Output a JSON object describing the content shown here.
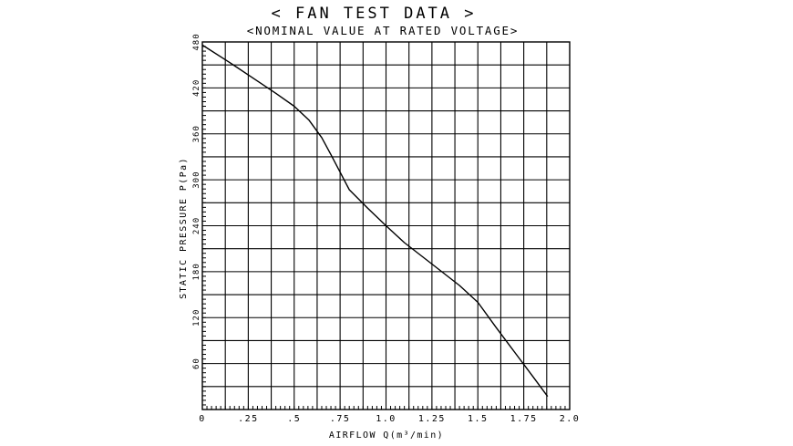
{
  "chart_data": {
    "type": "line",
    "title": "< FAN TEST DATA >",
    "subtitle": "<NOMINAL VALUE AT RATED VOLTAGE>",
    "xlabel": "AIRFLOW Q(m³/min)",
    "ylabel": "STATIC PRESSURE P(Pa)",
    "xlim": [
      0,
      2.0
    ],
    "ylim": [
      0,
      480
    ],
    "x_ticks": [
      {
        "value": 0,
        "label": "0"
      },
      {
        "value": 0.25,
        "label": ".25"
      },
      {
        "value": 0.5,
        "label": ".5"
      },
      {
        "value": 0.75,
        "label": ".75"
      },
      {
        "value": 1.0,
        "label": "1.0"
      },
      {
        "value": 1.25,
        "label": "1.25"
      },
      {
        "value": 1.5,
        "label": "1.5"
      },
      {
        "value": 1.75,
        "label": "1.75"
      },
      {
        "value": 2.0,
        "label": "2.0"
      }
    ],
    "y_ticks": [
      {
        "value": 60,
        "label": "60"
      },
      {
        "value": 120,
        "label": "120"
      },
      {
        "value": 180,
        "label": "180"
      },
      {
        "value": 240,
        "label": "240"
      },
      {
        "value": 300,
        "label": "300"
      },
      {
        "value": 360,
        "label": "360"
      },
      {
        "value": 420,
        "label": "420"
      },
      {
        "value": 480,
        "label": "480"
      }
    ],
    "grid": true,
    "grid_x_step": 0.125,
    "grid_y_step": 30,
    "series": [
      {
        "x": [
          0,
          0.15,
          0.3,
          0.4,
          0.5,
          0.58,
          0.65,
          0.7,
          0.75,
          0.8,
          0.9,
          1.0,
          1.1,
          1.25,
          1.4,
          1.5,
          1.6,
          1.7,
          1.8,
          1.88
        ],
        "y": [
          476,
          453,
          429,
          413,
          396,
          378,
          355,
          333,
          310,
          287,
          263,
          240,
          218,
          190,
          162,
          140,
          107,
          75,
          43,
          17
        ]
      }
    ]
  }
}
